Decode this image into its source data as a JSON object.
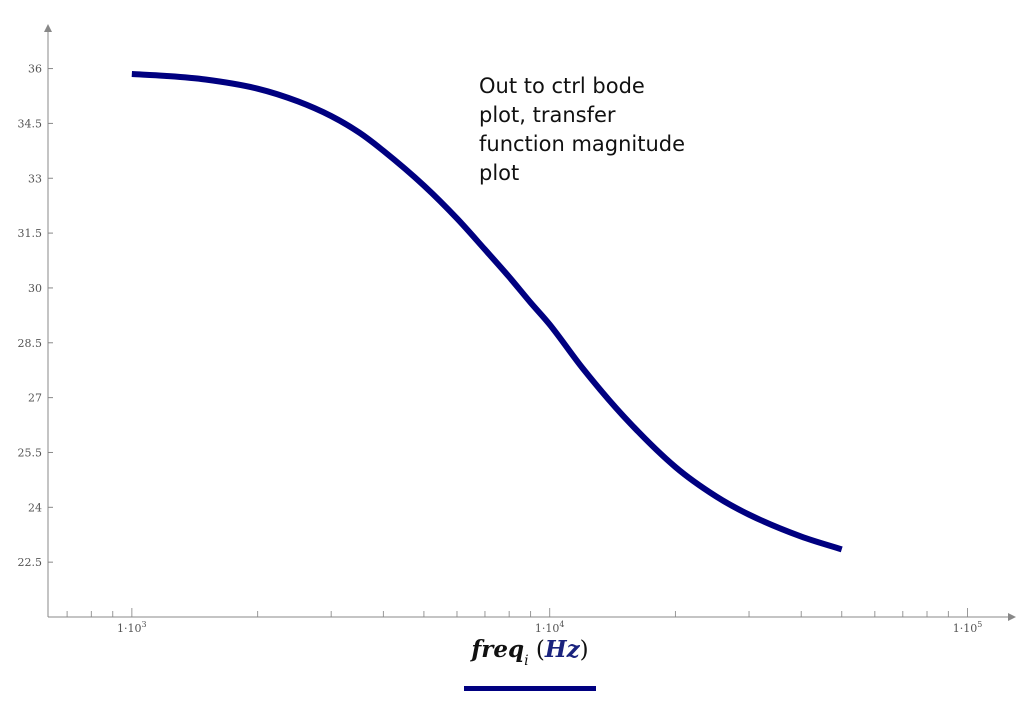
{
  "chart_data": {
    "type": "line",
    "x_scale": "log",
    "x_range": [
      630,
      125000
    ],
    "y_range": [
      21,
      37
    ],
    "x_ticks": [
      {
        "value": 1000,
        "mantissa": "1·10",
        "exp": "3"
      },
      {
        "value": 10000,
        "mantissa": "1·10",
        "exp": "4"
      },
      {
        "value": 100000,
        "mantissa": "1·10",
        "exp": "5"
      }
    ],
    "y_ticks": [
      "22.5",
      "24",
      "25.5",
      "27",
      "28.5",
      "30",
      "31.5",
      "33",
      "34.5",
      "36"
    ],
    "xlabel": {
      "var": "freq",
      "sub": "i",
      "unit": "Hz"
    },
    "annotation_lines": [
      "Out to ctrl bode",
      "plot, transfer",
      "function magnitude",
      "plot"
    ],
    "series": [
      {
        "color": "#000080",
        "x": [
          1000,
          1200,
          1500,
          2000,
          2500,
          3000,
          3500,
          4000,
          5000,
          6000,
          7000,
          8000,
          9000,
          10000,
          12000,
          15000,
          20000,
          25000,
          30000,
          40000,
          50000
        ],
        "y": [
          35.85,
          35.8,
          35.7,
          35.45,
          35.1,
          34.7,
          34.25,
          33.75,
          32.8,
          31.9,
          31.05,
          30.3,
          29.6,
          29.0,
          27.8,
          26.5,
          25.1,
          24.3,
          23.8,
          23.2,
          22.85
        ]
      }
    ]
  }
}
